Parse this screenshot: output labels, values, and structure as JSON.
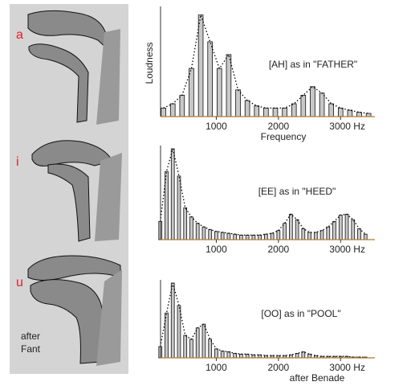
{
  "figure": {
    "vowel_labels": [
      "a",
      "i",
      "u"
    ],
    "credit": [
      "after",
      "Fant"
    ]
  },
  "chart_data": [
    {
      "type": "bar",
      "title": "[AH] as in \"FATHER\"",
      "y_label": "Loudness",
      "x_label": "Frequency",
      "color": "#c8c8c8",
      "x": [
        150,
        300,
        450,
        600,
        750,
        900,
        1050,
        1200,
        1350,
        1500,
        1650,
        1800,
        1950,
        2100,
        2250,
        2400,
        2550,
        2700,
        2850,
        3000,
        3150,
        3300,
        3450
      ],
      "values": [
        8,
        12,
        20,
        45,
        95,
        70,
        45,
        58,
        25,
        15,
        10,
        8,
        8,
        8,
        12,
        20,
        28,
        22,
        12,
        8,
        6,
        4,
        3
      ],
      "xlim": [
        0,
        3500
      ],
      "xticks": [
        1000,
        2000,
        {
          "value": 3000,
          "label": "3000 Hz"
        }
      ],
      "ylim": [
        0,
        100
      ]
    },
    {
      "type": "bar",
      "title": "[EE] as in \"HEED\"",
      "color": "#c8c8c8",
      "x": [
        100,
        200,
        300,
        400,
        500,
        600,
        700,
        800,
        900,
        1000,
        1100,
        1200,
        1300,
        1400,
        1500,
        1600,
        1700,
        1800,
        1900,
        2000,
        2100,
        2200,
        2300,
        2400,
        2500,
        2600,
        2700,
        2800,
        2900,
        3000,
        3100,
        3200,
        3300,
        3400
      ],
      "values": [
        20,
        75,
        100,
        70,
        35,
        25,
        18,
        14,
        11,
        9,
        8,
        7,
        6,
        5,
        5,
        5,
        5,
        6,
        7,
        10,
        18,
        28,
        22,
        12,
        8,
        8,
        10,
        14,
        20,
        27,
        28,
        22,
        12,
        6
      ],
      "xlim": [
        0,
        3500
      ],
      "xticks": [
        1000,
        2000,
        {
          "value": 3000,
          "label": "3000 Hz"
        }
      ],
      "ylim": [
        0,
        100
      ]
    },
    {
      "type": "bar",
      "title": "[OO] as in \"POOL\"",
      "annotation": "after Benade",
      "color": "#c8c8c8",
      "x": [
        100,
        200,
        300,
        400,
        500,
        600,
        700,
        800,
        900,
        1000,
        1100,
        1200,
        1300,
        1400,
        1500,
        1600,
        1700,
        1800,
        1900,
        2000,
        2100,
        2200,
        2300,
        2400,
        2500,
        2600,
        2700,
        2800,
        2900,
        3000,
        3100,
        3200,
        3300,
        3400
      ],
      "values": [
        15,
        60,
        100,
        70,
        30,
        25,
        40,
        45,
        25,
        12,
        9,
        8,
        6,
        5,
        5,
        4,
        4,
        3,
        3,
        3,
        3,
        4,
        6,
        8,
        5,
        3,
        2,
        2,
        2,
        2,
        2,
        1,
        1,
        1
      ],
      "xlim": [
        0,
        3500
      ],
      "xticks": [
        1000,
        2000,
        {
          "value": 3000,
          "label": "3000 Hz"
        }
      ],
      "ylim": [
        0,
        100
      ]
    }
  ]
}
